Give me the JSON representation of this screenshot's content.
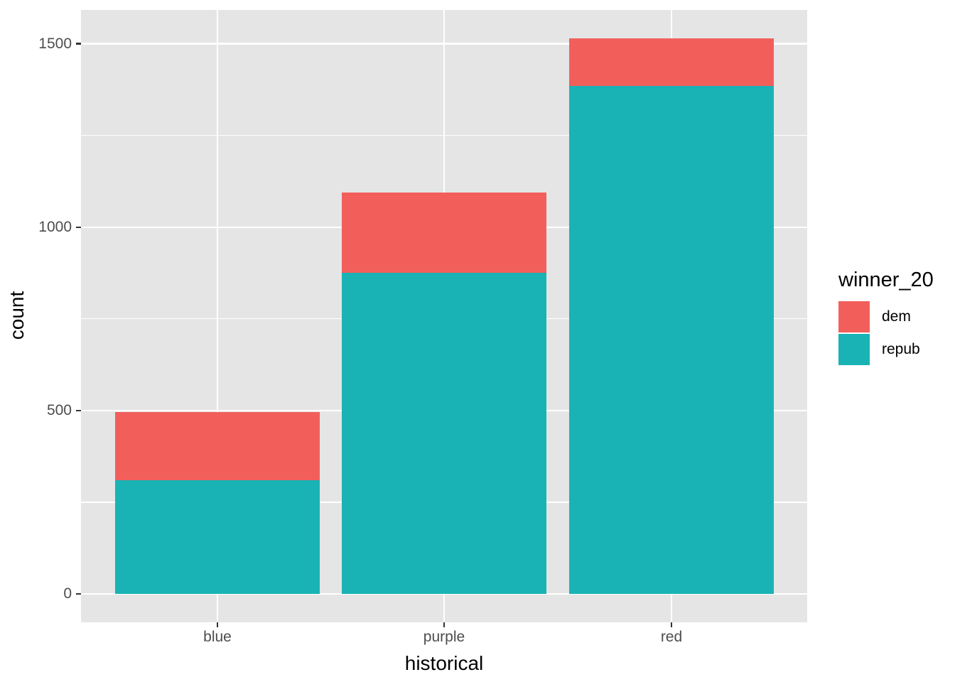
{
  "chart_data": {
    "type": "bar",
    "stacked": true,
    "title": "",
    "xlabel": "historical",
    "ylabel": "count",
    "categories": [
      "blue",
      "purple",
      "red"
    ],
    "series": [
      {
        "name": "dem",
        "color": "#F25F5B",
        "values": [
          185,
          220,
          130
        ]
      },
      {
        "name": "repub",
        "color": "#19B3B5",
        "values": [
          310,
          875,
          1385
        ]
      }
    ],
    "totals": [
      495,
      1095,
      1515
    ],
    "y_ticks": [
      0,
      500,
      1000,
      1500
    ],
    "y_minor_ticks": [
      250,
      750,
      1250
    ],
    "ylim": [
      0,
      1500
    ],
    "grid": true,
    "legend": {
      "title": "winner_20",
      "position": "right",
      "entries": [
        "dem",
        "repub"
      ]
    },
    "colors": {
      "panel_background": "#E5E5E5",
      "grid": "#FFFFFF",
      "tick_mark": "#333333",
      "tick_label": "#4D4D4D",
      "axis_title": "#000000"
    }
  }
}
